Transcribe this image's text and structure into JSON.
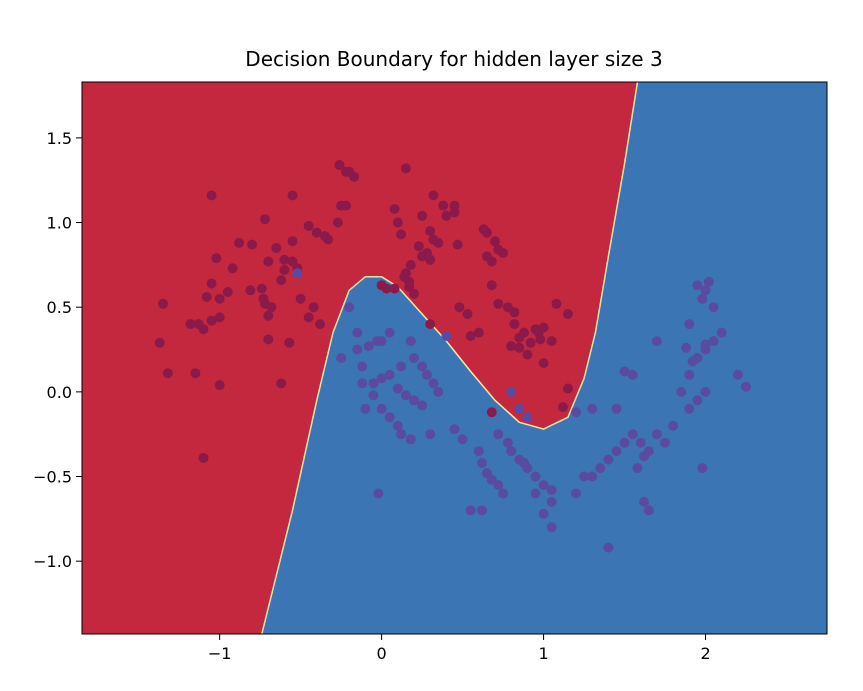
{
  "chart_data": {
    "type": "scatter",
    "title": "Decision Boundary for hidden layer size 3",
    "xlabel": "",
    "ylabel": "",
    "xlim": [
      -1.85,
      2.75
    ],
    "ylim": [
      -1.43,
      1.83
    ],
    "xticks": [
      {
        "value": -1,
        "label": "−1"
      },
      {
        "value": 0,
        "label": "0"
      },
      {
        "value": 1,
        "label": "1"
      },
      {
        "value": 2,
        "label": "2"
      }
    ],
    "yticks": [
      {
        "value": 1.5,
        "label": "1.5"
      },
      {
        "value": 1.0,
        "label": "1.0"
      },
      {
        "value": 0.5,
        "label": "0.5"
      },
      {
        "value": 0.0,
        "label": "0.0"
      },
      {
        "value": -0.5,
        "label": "−0.5"
      },
      {
        "value": -1.0,
        "label": "−1.0"
      }
    ],
    "grid": false,
    "legend": "none",
    "regions": {
      "class0_color": "#c3283f",
      "class1_color": "#3c75b3",
      "boundary": [
        [
          -0.74,
          -1.43
        ],
        [
          -0.55,
          -0.7
        ],
        [
          -0.4,
          -0.05
        ],
        [
          -0.3,
          0.35
        ],
        [
          -0.2,
          0.6
        ],
        [
          -0.1,
          0.68
        ],
        [
          0.0,
          0.68
        ],
        [
          0.1,
          0.62
        ],
        [
          0.25,
          0.46
        ],
        [
          0.4,
          0.3
        ],
        [
          0.55,
          0.12
        ],
        [
          0.7,
          -0.05
        ],
        [
          0.85,
          -0.18
        ],
        [
          1.0,
          -0.22
        ],
        [
          1.15,
          -0.15
        ],
        [
          1.25,
          0.08
        ],
        [
          1.32,
          0.35
        ],
        [
          1.4,
          0.8
        ],
        [
          1.5,
          1.35
        ],
        [
          1.58,
          1.83
        ]
      ]
    },
    "series": [
      {
        "color": "#8b1a4b",
        "points": [
          [
            -1.35,
            0.52
          ],
          [
            -1.37,
            0.29
          ],
          [
            -1.32,
            0.11
          ],
          [
            -1.15,
            0.11
          ],
          [
            -1.1,
            -0.39
          ],
          [
            -1.0,
            0.04
          ],
          [
            -1.0,
            0.44
          ],
          [
            -1.05,
            0.42
          ],
          [
            -1.1,
            0.37
          ],
          [
            -1.13,
            0.4
          ],
          [
            -1.18,
            0.4
          ],
          [
            -1.08,
            0.56
          ],
          [
            -1.0,
            0.55
          ],
          [
            -0.95,
            0.59
          ],
          [
            -1.05,
            0.64
          ],
          [
            -0.92,
            0.73
          ],
          [
            -0.88,
            0.88
          ],
          [
            -0.8,
            0.87
          ],
          [
            -0.7,
            0.77
          ],
          [
            -0.65,
            0.85
          ],
          [
            -0.72,
            1.02
          ],
          [
            -0.6,
            0.78
          ],
          [
            -0.55,
            0.77
          ],
          [
            -0.52,
            0.73
          ],
          [
            -0.55,
            0.89
          ],
          [
            -0.55,
            1.16
          ],
          [
            -0.45,
            0.98
          ],
          [
            -0.4,
            0.94
          ],
          [
            -0.35,
            0.92
          ],
          [
            -0.33,
            0.9
          ],
          [
            -0.27,
            1.0
          ],
          [
            -0.25,
            1.1
          ],
          [
            -0.22,
            1.3
          ],
          [
            -0.2,
            1.3
          ],
          [
            -0.17,
            1.27
          ],
          [
            -0.26,
            1.34
          ],
          [
            -0.22,
            1.1
          ],
          [
            -0.7,
            0.45
          ],
          [
            -0.72,
            0.52
          ],
          [
            -0.73,
            0.55
          ],
          [
            -0.68,
            0.5
          ],
          [
            -0.62,
            0.66
          ],
          [
            -0.6,
            0.72
          ],
          [
            -0.5,
            0.55
          ],
          [
            -0.42,
            0.5
          ],
          [
            -0.45,
            0.44
          ],
          [
            -0.38,
            0.4
          ],
          [
            -0.7,
            0.31
          ],
          [
            -0.57,
            0.29
          ],
          [
            -0.62,
            0.05
          ],
          [
            -0.81,
            0.6
          ],
          [
            -0.74,
            0.61
          ],
          [
            -1.02,
            0.79
          ],
          [
            -1.05,
            1.16
          ],
          [
            0.1,
            1.0
          ],
          [
            0.12,
            0.93
          ],
          [
            0.08,
            1.08
          ],
          [
            0.15,
            1.32
          ],
          [
            0.25,
            1.04
          ],
          [
            0.3,
            0.95
          ],
          [
            0.32,
            1.16
          ],
          [
            0.38,
            1.1
          ],
          [
            0.4,
            1.04
          ],
          [
            0.45,
            1.1
          ],
          [
            0.45,
            1.06
          ],
          [
            0.47,
            0.87
          ],
          [
            0.35,
            0.88
          ],
          [
            0.32,
            0.9
          ],
          [
            0.28,
            0.82
          ],
          [
            0.25,
            0.8
          ],
          [
            0.3,
            0.78
          ],
          [
            0.18,
            0.75
          ],
          [
            0.15,
            0.7
          ],
          [
            0.14,
            0.68
          ],
          [
            0.17,
            0.65
          ],
          [
            0.17,
            0.62
          ],
          [
            0.08,
            0.61
          ],
          [
            0.03,
            0.61
          ],
          [
            0.65,
            0.8
          ],
          [
            0.68,
            0.77
          ],
          [
            0.63,
            0.96
          ],
          [
            0.65,
            0.94
          ],
          [
            0.7,
            0.89
          ],
          [
            0.72,
            0.84
          ],
          [
            0.75,
            0.82
          ],
          [
            0.68,
            0.63
          ],
          [
            0.72,
            0.52
          ],
          [
            0.78,
            0.5
          ],
          [
            0.82,
            0.47
          ],
          [
            0.82,
            0.4
          ],
          [
            0.88,
            0.35
          ],
          [
            0.85,
            0.32
          ],
          [
            0.8,
            0.27
          ],
          [
            0.85,
            0.26
          ],
          [
            0.92,
            0.29
          ],
          [
            0.9,
            0.22
          ],
          [
            0.95,
            0.37
          ],
          [
            0.97,
            0.35
          ],
          [
            0.98,
            0.31
          ],
          [
            1.0,
            0.17
          ],
          [
            1.05,
            0.3
          ],
          [
            1.08,
            0.52
          ],
          [
            1.15,
            0.46
          ],
          [
            1.15,
            0.02
          ],
          [
            1.12,
            -0.09
          ],
          [
            0.68,
            -0.12
          ],
          [
            0.48,
            0.5
          ],
          [
            0.53,
            0.46
          ],
          [
            0.6,
            0.35
          ],
          [
            0.0,
            0.63
          ],
          [
            0.2,
            0.58
          ],
          [
            0.23,
            0.86
          ],
          [
            0.3,
            0.4
          ],
          [
            0.55,
            0.33
          ],
          [
            1.0,
            0.38
          ]
        ]
      },
      {
        "color": "#5a4ba0",
        "points": [
          [
            -0.52,
            0.7
          ],
          [
            -0.2,
            0.5
          ],
          [
            -0.15,
            0.35
          ],
          [
            -0.25,
            0.2
          ],
          [
            -0.15,
            0.25
          ],
          [
            -0.08,
            0.27
          ],
          [
            -0.03,
            0.3
          ],
          [
            0.0,
            0.3
          ],
          [
            0.05,
            0.35
          ],
          [
            -0.12,
            0.15
          ],
          [
            -0.05,
            0.05
          ],
          [
            0.0,
            0.08
          ],
          [
            0.05,
            0.1
          ],
          [
            0.1,
            0.02
          ],
          [
            0.15,
            -0.02
          ],
          [
            0.2,
            -0.05
          ],
          [
            0.25,
            -0.08
          ],
          [
            0.28,
            0.1
          ],
          [
            0.32,
            0.05
          ],
          [
            0.35,
            0.0
          ],
          [
            0.25,
            0.15
          ],
          [
            0.2,
            0.2
          ],
          [
            0.18,
            0.3
          ],
          [
            0.12,
            0.15
          ],
          [
            -0.05,
            -0.02
          ],
          [
            -0.1,
            -0.1
          ],
          [
            0.0,
            -0.1
          ],
          [
            0.05,
            -0.15
          ],
          [
            0.1,
            -0.2
          ],
          [
            0.12,
            -0.25
          ],
          [
            0.18,
            -0.28
          ],
          [
            0.3,
            -0.25
          ],
          [
            0.45,
            -0.22
          ],
          [
            0.5,
            -0.28
          ],
          [
            0.6,
            -0.35
          ],
          [
            0.62,
            -0.42
          ],
          [
            0.65,
            -0.48
          ],
          [
            0.68,
            -0.52
          ],
          [
            0.72,
            -0.55
          ],
          [
            0.75,
            -0.6
          ],
          [
            0.55,
            -0.7
          ],
          [
            0.62,
            -0.7
          ],
          [
            0.8,
            -0.35
          ],
          [
            0.85,
            -0.4
          ],
          [
            0.88,
            -0.42
          ],
          [
            0.9,
            -0.45
          ],
          [
            0.95,
            -0.5
          ],
          [
            1.0,
            -0.55
          ],
          [
            1.05,
            -0.58
          ],
          [
            1.0,
            -0.72
          ],
          [
            1.05,
            -0.8
          ],
          [
            1.2,
            -0.6
          ],
          [
            1.25,
            -0.5
          ],
          [
            1.3,
            -0.5
          ],
          [
            1.35,
            -0.45
          ],
          [
            1.4,
            -0.4
          ],
          [
            1.45,
            -0.35
          ],
          [
            1.5,
            -0.3
          ],
          [
            1.55,
            -0.25
          ],
          [
            1.6,
            -0.3
          ],
          [
            1.65,
            -0.35
          ],
          [
            1.7,
            -0.25
          ],
          [
            1.75,
            -0.3
          ],
          [
            1.8,
            -0.2
          ],
          [
            1.85,
            0.0
          ],
          [
            1.9,
            0.1
          ],
          [
            1.95,
            0.2
          ],
          [
            2.0,
            0.25
          ],
          [
            2.05,
            0.3
          ],
          [
            2.1,
            0.35
          ],
          [
            1.88,
            0.26
          ],
          [
            1.98,
            0.55
          ],
          [
            2.0,
            0.6
          ],
          [
            2.02,
            0.65
          ],
          [
            2.05,
            0.5
          ],
          [
            1.95,
            0.63
          ],
          [
            1.9,
            0.4
          ],
          [
            2.2,
            0.1
          ],
          [
            2.25,
            0.03
          ],
          [
            2.0,
            0.0
          ],
          [
            1.95,
            -0.05
          ],
          [
            1.9,
            -0.1
          ],
          [
            1.4,
            -0.92
          ],
          [
            1.62,
            -0.65
          ],
          [
            1.65,
            -0.7
          ],
          [
            1.55,
            0.1
          ],
          [
            1.5,
            0.12
          ],
          [
            1.45,
            -0.1
          ],
          [
            1.3,
            -0.1
          ],
          [
            1.2,
            -0.12
          ],
          [
            1.05,
            -0.65
          ],
          [
            0.95,
            -0.6
          ],
          [
            -0.02,
            -0.6
          ],
          [
            0.4,
            0.33
          ],
          [
            -0.12,
            0.05
          ],
          [
            0.8,
            0.0
          ],
          [
            0.85,
            -0.1
          ],
          [
            0.9,
            -0.15
          ],
          [
            0.72,
            -0.25
          ],
          [
            0.78,
            -0.3
          ],
          [
            1.58,
            -0.45
          ],
          [
            1.62,
            -0.38
          ],
          [
            1.7,
            0.3
          ],
          [
            2.0,
            0.28
          ],
          [
            1.92,
            0.18
          ],
          [
            1.98,
            -0.45
          ]
        ]
      }
    ]
  }
}
